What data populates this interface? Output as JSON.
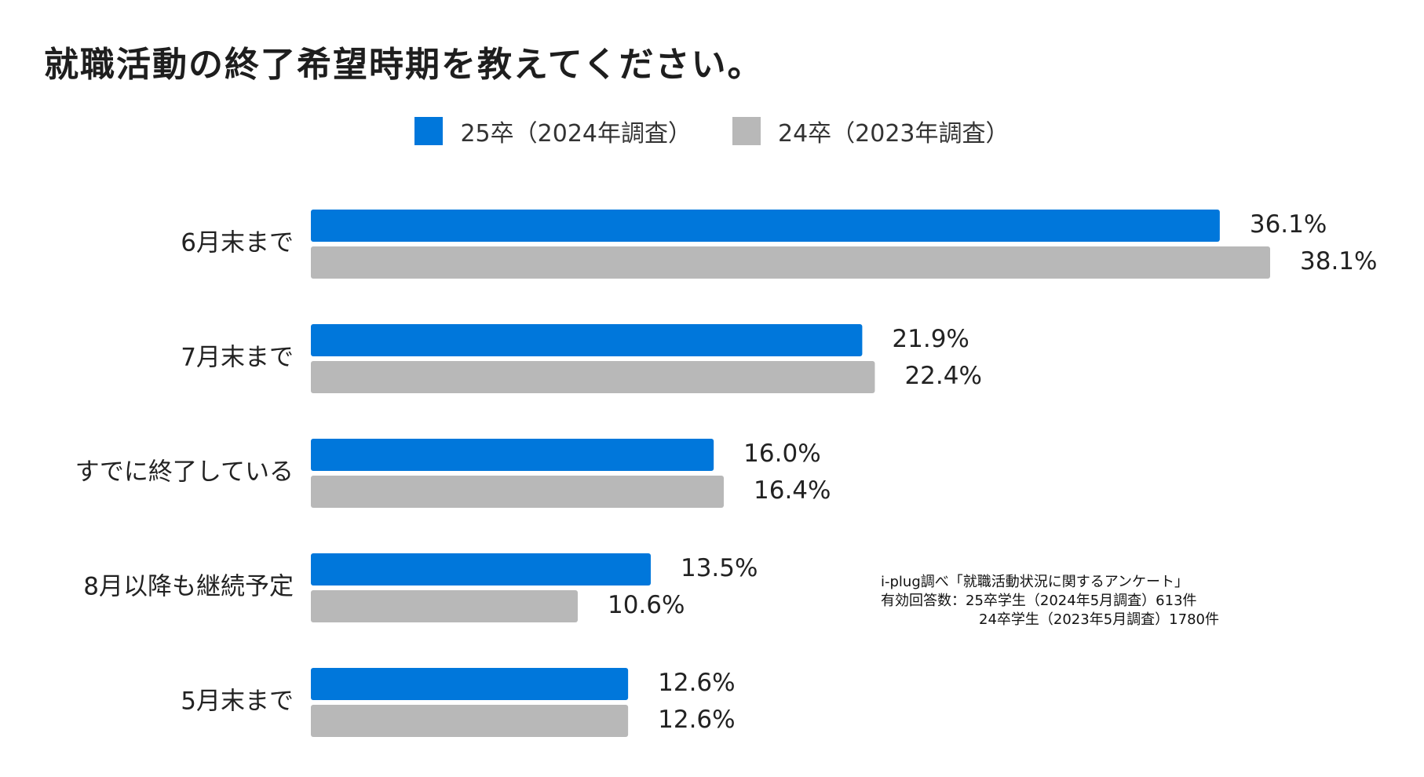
{
  "chart_data": {
    "type": "bar",
    "orientation": "horizontal",
    "title": "就職活動の終了希望時期を教えてください。",
    "categories": [
      "6月末まで",
      "7月末まで",
      "すでに終了している",
      "8月以降も継続予定",
      "5月末まで"
    ],
    "series": [
      {
        "name": "25卒（2024年調査）",
        "color": "#0077DB",
        "values": [
          36.1,
          21.9,
          16.0,
          13.5,
          12.6
        ],
        "labels": [
          "36.1%",
          "21.9%",
          "16.0%",
          "13.5%",
          "12.6%"
        ]
      },
      {
        "name": "24卒（2023年調査）",
        "color": "#B8B8B8",
        "values": [
          38.1,
          22.4,
          16.4,
          10.6,
          12.6
        ],
        "labels": [
          "38.1%",
          "22.4%",
          "16.4%",
          "10.6%",
          "12.6%"
        ]
      }
    ],
    "xlim": [
      0,
      38.1
    ],
    "legend_position": "top-center",
    "grid": false,
    "xlabel": "",
    "ylabel": ""
  },
  "note": {
    "line1": "i-plug調べ「就職活動状況に関するアンケート」",
    "line2": "有効回答数：25卒学生（2024年5月調査）613件",
    "line3": "24卒学生（2023年5月調査）1780件"
  }
}
